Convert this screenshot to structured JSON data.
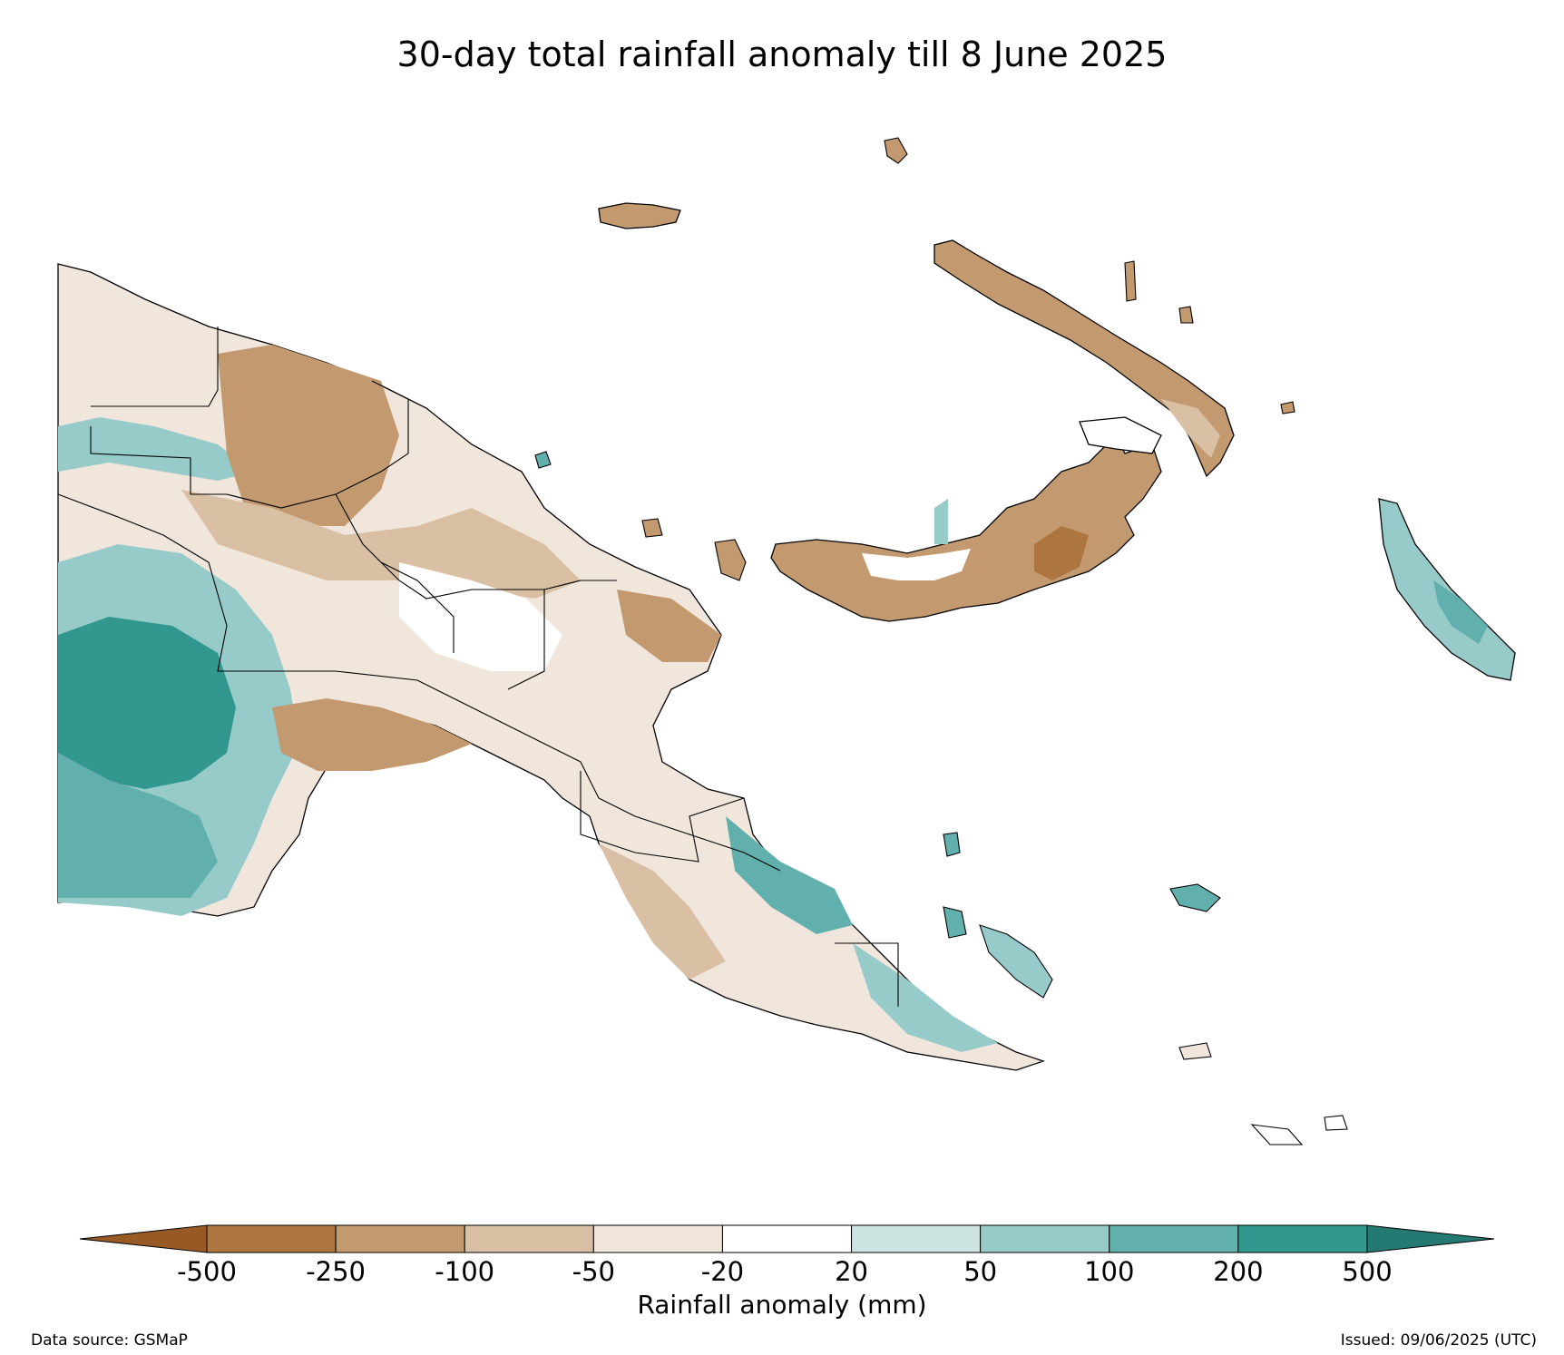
{
  "title": "30-day total rainfall anomaly till 8 June 2025",
  "colorbar": {
    "label": "Rainfall anomaly (mm)",
    "ticks": [
      "-500",
      "-250",
      "-100",
      "-50",
      "-20",
      "20",
      "50",
      "100",
      "200",
      "500"
    ],
    "colors": [
      "#975a25",
      "#ad7641",
      "#c39a6f",
      "#d9c0a5",
      "#f1e6dc",
      "#ffffff",
      "#cde4e3",
      "#97cbca",
      "#62b0ae",
      "#31978f",
      "#247a73"
    ]
  },
  "footer": {
    "source": "Data source: GSMaP",
    "issued": "Issued: 09/06/2025 (UTC)"
  }
}
